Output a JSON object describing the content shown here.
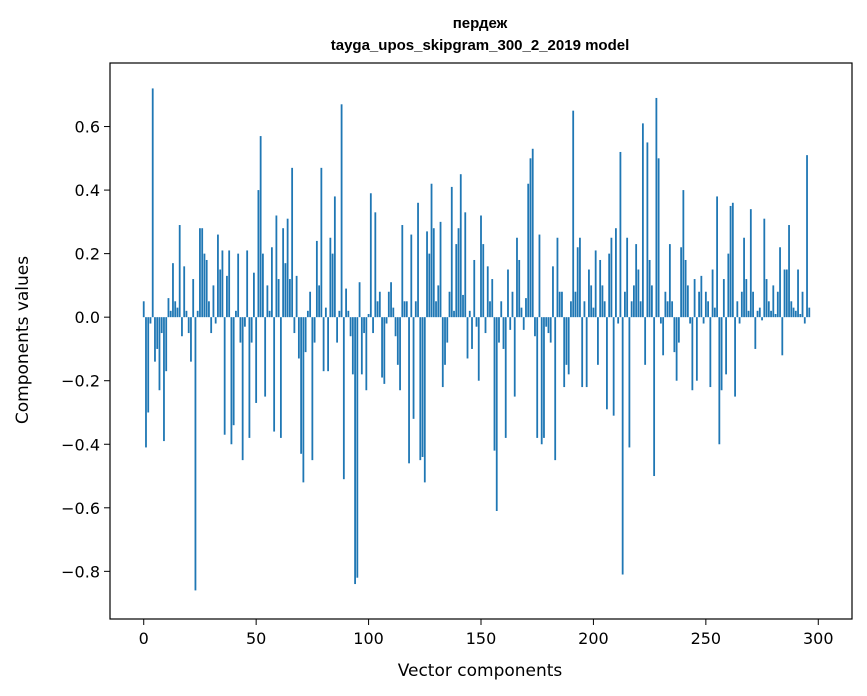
{
  "chart_data": {
    "type": "bar",
    "title_line1": "пердеж",
    "title_line2": "tayga_upos_skipgram_300_2_2019 model",
    "xlabel": "Vector components",
    "ylabel": "Components values",
    "xlim": [
      -15,
      315
    ],
    "ylim": [
      -0.95,
      0.8
    ],
    "xticks": [
      0,
      50,
      100,
      150,
      200,
      250,
      300
    ],
    "xtick_labels": [
      "0",
      "50",
      "100",
      "150",
      "200",
      "250",
      "300"
    ],
    "yticks": [
      -0.8,
      -0.6,
      -0.4,
      -0.2,
      0.0,
      0.2,
      0.4,
      0.6
    ],
    "ytick_labels": [
      "−0.8",
      "−0.6",
      "−0.4",
      "−0.2",
      "0.0",
      "0.2",
      "0.4",
      "0.6"
    ],
    "grid": false,
    "bar_color": "#1f77b4",
    "values": [
      0.05,
      -0.41,
      -0.3,
      -0.02,
      0.72,
      -0.14,
      -0.1,
      -0.23,
      -0.05,
      -0.39,
      -0.17,
      0.06,
      0.02,
      0.17,
      0.05,
      0.03,
      0.29,
      -0.06,
      0.16,
      0.02,
      -0.05,
      -0.14,
      0.12,
      -0.86,
      0.02,
      0.28,
      0.28,
      0.2,
      0.18,
      0.05,
      -0.05,
      0.1,
      -0.02,
      0.26,
      0.15,
      0.21,
      -0.37,
      0.13,
      0.21,
      -0.4,
      -0.34,
      0.02,
      0.2,
      -0.08,
      -0.45,
      -0.03,
      0.21,
      -0.38,
      -0.08,
      0.14,
      -0.27,
      0.4,
      0.57,
      0.2,
      -0.25,
      0.1,
      0.02,
      0.22,
      -0.36,
      0.32,
      0.12,
      -0.38,
      0.28,
      0.17,
      0.31,
      0.12,
      0.47,
      -0.05,
      0.13,
      -0.13,
      -0.43,
      -0.52,
      -0.11,
      0.02,
      0.08,
      -0.45,
      -0.08,
      0.24,
      0.1,
      0.47,
      -0.17,
      0.03,
      -0.17,
      0.25,
      0.2,
      0.38,
      -0.08,
      0.02,
      0.67,
      -0.51,
      0.09,
      0.02,
      -0.06,
      -0.18,
      -0.84,
      -0.82,
      0.11,
      -0.18,
      -0.05,
      -0.23,
      0.01,
      0.39,
      -0.05,
      0.33,
      0.05,
      0.08,
      -0.19,
      -0.21,
      -0.02,
      0.08,
      0.11,
      0.03,
      -0.06,
      -0.15,
      -0.23,
      0.29,
      0.05,
      0.05,
      -0.46,
      0.26,
      -0.32,
      0.05,
      0.36,
      -0.45,
      -0.44,
      -0.52,
      0.27,
      0.2,
      0.42,
      0.28,
      0.05,
      0.1,
      0.3,
      -0.22,
      -0.15,
      -0.08,
      0.08,
      0.41,
      0.02,
      0.23,
      0.28,
      0.45,
      0.07,
      0.33,
      -0.13,
      0.02,
      -0.1,
      0.18,
      -0.03,
      -0.2,
      0.32,
      0.23,
      -0.05,
      0.16,
      0.05,
      0.12,
      -0.42,
      -0.61,
      -0.08,
      0.05,
      -0.1,
      -0.38,
      0.15,
      -0.04,
      0.08,
      -0.25,
      0.25,
      0.18,
      0.03,
      -0.04,
      0.06,
      0.42,
      0.5,
      0.53,
      -0.06,
      -0.38,
      0.26,
      -0.4,
      -0.38,
      -0.03,
      -0.05,
      -0.08,
      0.16,
      -0.45,
      0.25,
      0.08,
      0.08,
      -0.22,
      -0.15,
      -0.18,
      0.05,
      0.65,
      0.08,
      0.22,
      0.25,
      -0.22,
      0.05,
      -0.22,
      0.15,
      0.1,
      0.03,
      0.21,
      -0.15,
      0.18,
      0.1,
      0.05,
      -0.29,
      0.2,
      0.25,
      -0.31,
      0.28,
      -0.02,
      0.52,
      -0.81,
      0.08,
      0.25,
      -0.41,
      0.05,
      0.1,
      0.23,
      0.15,
      0.05,
      0.61,
      -0.15,
      0.55,
      0.18,
      0.1,
      -0.5,
      0.69,
      0.5,
      -0.02,
      -0.12,
      0.08,
      0.05,
      0.23,
      0.05,
      -0.11,
      -0.2,
      -0.08,
      0.22,
      0.4,
      0.18,
      0.1,
      -0.02,
      -0.23,
      0.12,
      -0.2,
      0.08,
      0.13,
      -0.02,
      0.08,
      0.05,
      -0.22,
      0.15,
      0.03,
      0.38,
      -0.4,
      -0.23,
      0.12,
      -0.18,
      0.2,
      0.35,
      0.36,
      -0.25,
      0.05,
      -0.02,
      0.08,
      0.25,
      0.12,
      0.02,
      0.34,
      0.08,
      -0.1,
      0.02,
      0.03,
      -0.01,
      0.31,
      0.12,
      0.05,
      0.02,
      0.1,
      0.01,
      0.08,
      0.22,
      -0.12,
      0.15,
      0.15,
      0.29,
      0.05,
      0.03,
      0.02,
      0.15,
      0.01,
      0.08,
      -0.02,
      0.51,
      0.03
    ]
  }
}
